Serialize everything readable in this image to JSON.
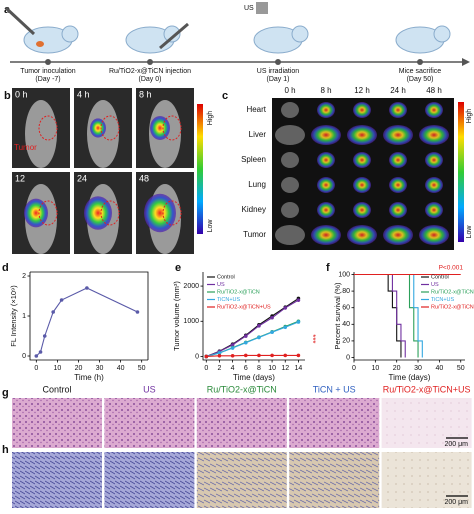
{
  "panel_a": {
    "label": "a",
    "device": "US",
    "steps": [
      {
        "title": "Tumor inoculation",
        "day": "(Day -7)"
      },
      {
        "title": "Ru/TiO2-x@TiCN injection",
        "day": "(Day  0)"
      },
      {
        "title": "US irradiation",
        "day": "(Day  1)"
      },
      {
        "title": "Mice sacrifice",
        "day": "(Day  50)"
      }
    ]
  },
  "panel_b": {
    "label": "b",
    "times": [
      "0 h",
      "4 h",
      "8 h",
      "12",
      "24",
      "48"
    ],
    "region": "Tumor",
    "scale": {
      "high": "High",
      "low": "Low"
    }
  },
  "panel_c": {
    "label": "c",
    "times": [
      "0 h",
      "8 h",
      "12 h",
      "24 h",
      "48 h"
    ],
    "organs": [
      "Heart",
      "Liver",
      "Spleen",
      "Lung",
      "Kidney",
      "Tumor"
    ],
    "scale": {
      "high": "High",
      "low": "Low"
    }
  },
  "chart_data": [
    {
      "type": "line",
      "panel_label": "d",
      "x_label": "Time (h)",
      "y_label": "FL Intensity (×10⁹)",
      "x": [
        0,
        2,
        4,
        8,
        12,
        24,
        48
      ],
      "values": [
        0,
        0.1,
        0.5,
        1.1,
        1.4,
        1.7,
        1.1
      ],
      "color": "#5a5aa8",
      "xlim": [
        -3,
        53
      ],
      "xticks": [
        0,
        10,
        20,
        30,
        40,
        50
      ],
      "ylim": [
        -0.1,
        2.1
      ],
      "yticks": [
        0,
        1,
        2
      ]
    },
    {
      "type": "line",
      "panel_label": "e",
      "x_label": "Time (days)",
      "y_label": "Tumor volume (mm³)",
      "x": [
        0,
        2,
        4,
        6,
        8,
        10,
        12,
        14
      ],
      "legend": "upper left",
      "series": [
        {
          "name": "Control",
          "color": "#111111",
          "values": [
            0,
            150,
            350,
            600,
            900,
            1150,
            1400,
            1650
          ]
        },
        {
          "name": "US",
          "color": "#7030a0",
          "values": [
            0,
            140,
            330,
            580,
            870,
            1100,
            1380,
            1600
          ]
        },
        {
          "name": "Ru/TiO2-x@TiCN",
          "color": "#2ca05a",
          "values": [
            0,
            100,
            250,
            400,
            550,
            700,
            850,
            1000
          ]
        },
        {
          "name": "TiCN+US",
          "color": "#33a8e0",
          "values": [
            0,
            100,
            240,
            390,
            540,
            690,
            830,
            980
          ]
        },
        {
          "name": "Ru/TiO2-x@TiCN+US",
          "color": "#e02020",
          "values": [
            0,
            20,
            20,
            30,
            30,
            30,
            30,
            30
          ]
        }
      ],
      "annotation": {
        "text": "***",
        "color": "#e02020"
      },
      "xlim": [
        -0.5,
        15
      ],
      "xticks": [
        0,
        2,
        4,
        6,
        8,
        10,
        12,
        14
      ],
      "ylim": [
        -100,
        2400
      ],
      "yticks": [
        0,
        1000,
        2000
      ]
    },
    {
      "type": "step",
      "panel_label": "f",
      "x_label": "Time (days)",
      "y_label": "Percent survival (%)",
      "legend": "upper right",
      "series": [
        {
          "name": "Control",
          "color": "#111111",
          "x": [
            0,
            16,
            18,
            20,
            22
          ],
          "values": [
            100,
            80,
            60,
            20,
            0
          ]
        },
        {
          "name": "US",
          "color": "#7030a0",
          "x": [
            0,
            18,
            20,
            22,
            24
          ],
          "values": [
            100,
            80,
            40,
            20,
            0
          ]
        },
        {
          "name": "Ru/TiO2-x@TiCN",
          "color": "#2ca05a",
          "x": [
            0,
            26,
            28,
            30
          ],
          "values": [
            100,
            60,
            20,
            0
          ]
        },
        {
          "name": "TiCN+US",
          "color": "#33a8e0",
          "x": [
            0,
            28,
            30,
            32
          ],
          "values": [
            100,
            60,
            20,
            0
          ]
        },
        {
          "name": "Ru/TiO2-x@TiCN+US",
          "color": "#e02020",
          "x": [
            0,
            50
          ],
          "values": [
            100,
            100
          ]
        }
      ],
      "annotation": {
        "text": "P<0.001",
        "color": "#e02020"
      },
      "xlim": [
        0,
        52
      ],
      "xticks": [
        0,
        10,
        20,
        30,
        40,
        50
      ],
      "ylim": [
        -3,
        103
      ],
      "yticks": [
        0,
        20,
        40,
        60,
        80,
        100
      ]
    }
  ],
  "panel_g": {
    "label": "g",
    "groups": [
      "Control",
      "US",
      "Ru/TiO2-x@TiCN",
      "TiCN + US",
      "Ru/TiO2-x@TiCN+US"
    ],
    "scale_bar": "200 μm"
  },
  "panel_h": {
    "label": "h",
    "scale_bar": "200 μm"
  }
}
